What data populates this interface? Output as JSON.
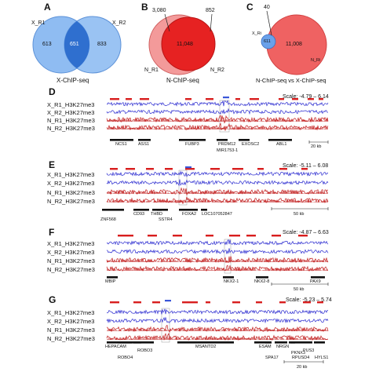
{
  "colors": {
    "blue_light": "#7fb3f0",
    "blue_dark": "#2b69c8",
    "red_light": "#f28a8a",
    "red_dark": "#e01d1d",
    "x_track": "#2a2ad0",
    "n_track": "#c01818",
    "peak_red": "#d81e1e",
    "peak_blue": "#3a56d8"
  },
  "venns": [
    {
      "letter": "A",
      "left_label": "X_R1",
      "right_label": "X_R2",
      "left_count": "613",
      "center_count": "651",
      "right_count": "833",
      "title": "X-ChIP-seq"
    },
    {
      "letter": "B",
      "top_left_count": "3,080",
      "top_right_count": "852",
      "center_count": "11,048",
      "left_label": "N_R1",
      "right_label": "N_R2",
      "title": "N-ChIP-seq"
    },
    {
      "letter": "C",
      "top_count": "40",
      "small_count": "611",
      "center_count": "11,008",
      "left_label": "X_Ri",
      "right_label": "N_Ri",
      "title": "N-ChIP-seq vs X-ChIP-seq"
    }
  ],
  "tracks": [
    {
      "letter": "D",
      "scale": "Scale: -4.79 – 6.14",
      "labels": [
        "X_R1_H3K27me3",
        "X_R2_H3K27me3",
        "N_R1_H3K27me3",
        "N_R2_H3K27me3"
      ],
      "genes": [
        "NCS1",
        "ASS1",
        "FUBP3",
        "PRDM12",
        "MIR1753-1",
        "EXOSC2",
        "ABL1"
      ],
      "scalebar": "20 kb"
    },
    {
      "letter": "E",
      "scale": "Scale: -5.11 – 6.08",
      "labels": [
        "X_R1_H3K27me3",
        "X_R2_H3K27me3",
        "N_R1_H3K27me3",
        "N_R2_H3K27me3"
      ],
      "genes": [
        "ZNF568",
        "CD93",
        "THBD",
        "SSTR4",
        "FOXA2",
        "LOC107052847"
      ],
      "scalebar": "50 kb"
    },
    {
      "letter": "F",
      "scale": "Scale: -4.87 – 6.63",
      "labels": [
        "X_R1_H3K27me3",
        "X_R2_H3K27me3",
        "N_R1_H3K27me3",
        "N_R2_H3K27me3"
      ],
      "genes": [
        "MBIP",
        "NKX2-1",
        "NKX2-8",
        "PAX9"
      ],
      "scalebar": "50 kb"
    },
    {
      "letter": "G",
      "scale": "Scale: -5.23 – 5.74",
      "labels": [
        "X_R1_H3K27me3",
        "X_R2_H3K27me3",
        "N_R1_H3K27me3",
        "N_R2_H3K27me3"
      ],
      "genes": [
        "HEPACAM",
        "ROBO3",
        "ROBO4",
        "MSANTD2",
        "ESAM",
        "NRGN",
        "SPA17",
        "PKNX3",
        "RPUSD4",
        "PUS3",
        "HYLS1"
      ],
      "scalebar": "20 kb"
    }
  ]
}
